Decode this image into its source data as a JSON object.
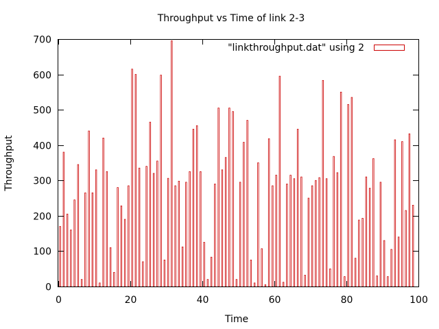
{
  "chart_data": {
    "type": "bar",
    "title": "Throughput vs Time of link 2-3",
    "xlabel": "Time",
    "ylabel": "Throughput",
    "xlim": [
      0,
      100
    ],
    "ylim": [
      0,
      700
    ],
    "xticks": [
      0,
      20,
      40,
      60,
      80,
      100
    ],
    "yticks": [
      0,
      100,
      200,
      300,
      400,
      500,
      600,
      700
    ],
    "grid": false,
    "legend_position": "top-right",
    "bar_color": "#cc0000",
    "series": [
      {
        "name": "\"linkthroughput.dat\" using 2",
        "x": [
          0,
          1,
          2,
          3,
          4,
          5,
          6,
          7,
          8,
          9,
          10,
          11,
          12,
          13,
          14,
          15,
          16,
          17,
          18,
          19,
          20,
          21,
          22,
          23,
          24,
          25,
          26,
          27,
          28,
          29,
          30,
          31,
          32,
          33,
          34,
          35,
          36,
          37,
          38,
          39,
          40,
          41,
          42,
          43,
          44,
          45,
          46,
          47,
          48,
          49,
          50,
          51,
          52,
          53,
          54,
          55,
          56,
          57,
          58,
          59,
          60,
          61,
          62,
          63,
          64,
          65,
          66,
          67,
          68,
          69,
          70,
          71,
          72,
          73,
          74,
          75,
          76,
          77,
          78,
          79,
          80,
          81,
          82,
          83,
          84,
          85,
          86,
          87,
          88,
          89,
          90,
          91,
          92,
          93,
          94,
          95,
          96,
          97,
          98
        ],
        "values": [
          170,
          380,
          205,
          160,
          245,
          345,
          20,
          265,
          440,
          265,
          330,
          10,
          420,
          325,
          110,
          40,
          280,
          228,
          190,
          285,
          615,
          600,
          335,
          70,
          340,
          465,
          320,
          355,
          598,
          75,
          306,
          695,
          285,
          298,
          112,
          295,
          325,
          445,
          455,
          325,
          125,
          20,
          83,
          290,
          505,
          330,
          365,
          505,
          495,
          20,
          295,
          408,
          470,
          75,
          10,
          350,
          107,
          5,
          418,
          285,
          315,
          595,
          12,
          290,
          315,
          305,
          445,
          310,
          32,
          250,
          285,
          300,
          308,
          583,
          305,
          50,
          368,
          322,
          550,
          28,
          515,
          535,
          80,
          188,
          193,
          310,
          278,
          362,
          30,
          295,
          130,
          28,
          105,
          415,
          140,
          410,
          215,
          432,
          230
        ]
      }
    ]
  }
}
